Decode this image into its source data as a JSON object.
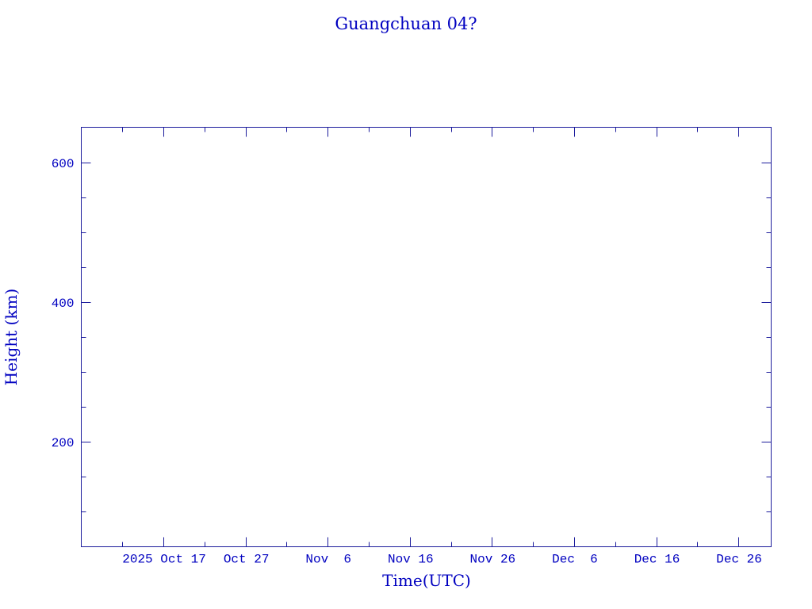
{
  "chart_data": {
    "type": "scatter",
    "title": "Guangchuan 04?",
    "xlabel": "Time(UTC)",
    "ylabel": "Height (km)",
    "ylim": [
      50,
      650
    ],
    "yticks": [
      200,
      400,
      600
    ],
    "y_minor_step": 50,
    "xlim": [
      "2025-10-07",
      "2025-12-30"
    ],
    "xticks": [
      {
        "date": "2025-10-17",
        "label": "2025 Oct 17"
      },
      {
        "date": "2025-10-27",
        "label": "Oct 27"
      },
      {
        "date": "2025-11-06",
        "label": "Nov  6"
      },
      {
        "date": "2025-11-16",
        "label": "Nov 16"
      },
      {
        "date": "2025-11-26",
        "label": "Nov 26"
      },
      {
        "date": "2025-12-06",
        "label": "Dec  6"
      },
      {
        "date": "2025-12-16",
        "label": "Dec 16"
      },
      {
        "date": "2025-12-26",
        "label": "Dec 26"
      }
    ],
    "x_minor_step_days": 5,
    "series": [],
    "grid": false,
    "colors": {
      "axis": "#1c1c9c",
      "text": "#0000c0"
    }
  }
}
